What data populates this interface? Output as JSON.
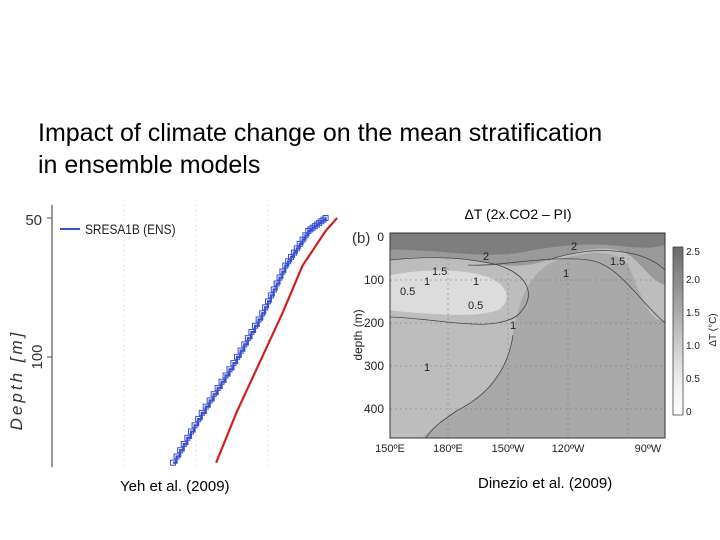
{
  "slide": {
    "title_line1": "Impact of climate change on the mean stratification",
    "title_line2": "in ensemble models",
    "caption_left": "Yeh et al. (2009)",
    "caption_right": "Dinezio et al. (2009)"
  },
  "chart_data": [
    {
      "type": "line",
      "legend": [
        "SRESA1B (ENS)"
      ],
      "ylabel": "Depth [m]",
      "y_ticks": [
        "50",
        "100"
      ],
      "ylim": [
        50,
        165
      ],
      "series": [
        {
          "name": "SRESA1B (ENS)",
          "color": "#3a4fd0",
          "style": "stepped-markers",
          "points": [
            [
              0.42,
              163
            ],
            [
              0.52,
              140
            ],
            [
              0.63,
              117
            ],
            [
              0.73,
              94
            ],
            [
              0.81,
              72
            ],
            [
              0.89,
              56
            ],
            [
              0.95,
              50
            ]
          ]
        },
        {
          "color": "#d02020",
          "style": "solid",
          "points": [
            [
              0.57,
              163
            ],
            [
              0.64,
              140
            ],
            [
              0.72,
              117
            ],
            [
              0.8,
              94
            ],
            [
              0.87,
              72
            ],
            [
              0.95,
              56
            ],
            [
              0.99,
              50
            ]
          ]
        }
      ]
    },
    {
      "type": "contour",
      "panel_label": "(b)",
      "title": "ΔT (2x.CO2 – PI)",
      "ylabel": "depth (m)",
      "y_ticks": [
        "0",
        "100",
        "200",
        "300",
        "400"
      ],
      "ylim": [
        0,
        450
      ],
      "x_ticks": [
        "150ºE",
        "180ºE",
        "150ºW",
        "120ºW",
        "90ºW"
      ],
      "colorbar_label": "ΔT (°C)",
      "colorbar_ticks": [
        "0",
        "0.5",
        "1.0",
        "1.5",
        "2.0",
        "2.5"
      ],
      "contour_labels": [
        "2",
        "2",
        "1.5",
        "1.5",
        "1",
        "1",
        "1",
        "0.5",
        "0.5",
        "1",
        "1"
      ]
    }
  ]
}
